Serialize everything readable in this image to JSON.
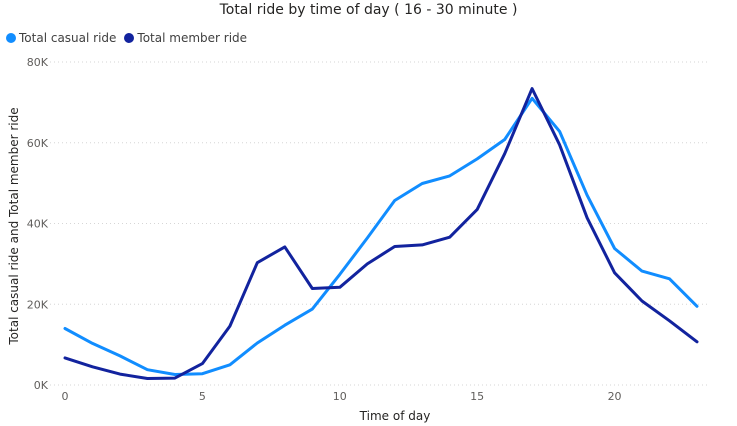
{
  "chart_data": {
    "type": "line",
    "title": "Total ride by time of day ( 16 - 30 minute )",
    "xlabel": "Time of day",
    "ylabel": "Total casual ride and Total member ride",
    "x": [
      0,
      1,
      2,
      3,
      4,
      5,
      6,
      7,
      8,
      9,
      10,
      11,
      12,
      13,
      14,
      15,
      16,
      17,
      18,
      19,
      20,
      21,
      22,
      23
    ],
    "xlim": [
      0,
      23
    ],
    "ylim": [
      0,
      80000
    ],
    "x_ticks": [
      "0",
      "5",
      "10",
      "15",
      "20"
    ],
    "y_ticks": [
      "0K",
      "20K",
      "40K",
      "60K",
      "80K"
    ],
    "grid": "horizontal dotted",
    "legend_position": "top-left",
    "series": [
      {
        "name": "Total casual ride",
        "color": "#118DFF",
        "values": [
          14000,
          10300,
          7200,
          3800,
          2600,
          2800,
          5000,
          10400,
          14800,
          18800,
          27400,
          36400,
          45700,
          49900,
          51800,
          56000,
          60800,
          71000,
          62800,
          47000,
          33800,
          28200,
          26300,
          19500
        ]
      },
      {
        "name": "Total member ride",
        "color": "#12239E",
        "values": [
          6700,
          4500,
          2700,
          1600,
          1700,
          5300,
          14600,
          30300,
          34200,
          23900,
          24200,
          30000,
          34300,
          34700,
          36600,
          43500,
          57300,
          73400,
          59500,
          41400,
          27800,
          20800,
          15900,
          10700
        ]
      }
    ]
  }
}
